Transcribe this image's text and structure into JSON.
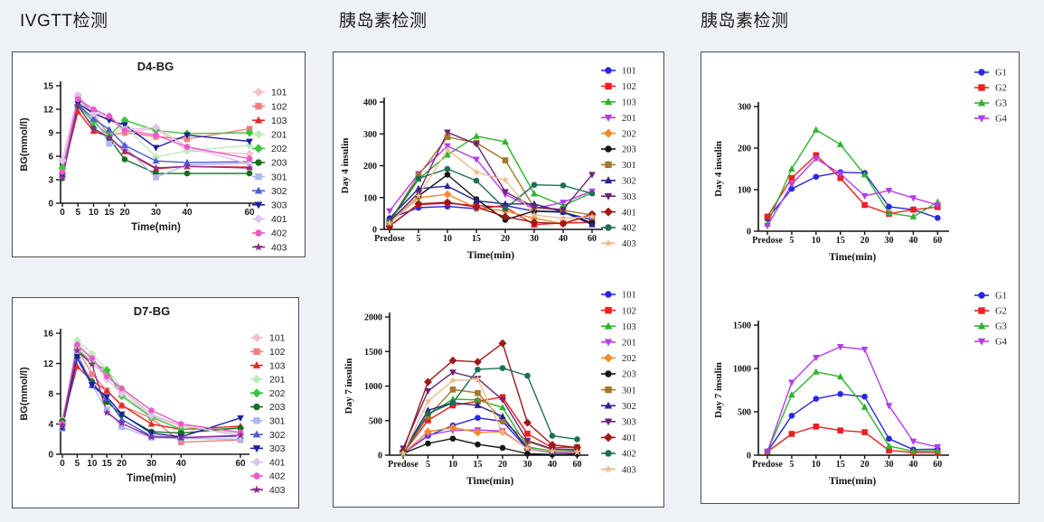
{
  "page": {
    "background": "#eef1f6",
    "panel_background": "#ffffff",
    "panel_border": "#4d4d4d"
  },
  "headers": {
    "left": "IVGTT检测",
    "middle": "胰岛素检测",
    "right": "胰岛素检测"
  },
  "chart_data": [
    {
      "id": "d4-bg",
      "type": "line",
      "title": "D4-BG",
      "xlabel": "Time(min)",
      "ylabel": "BG(mmol/l)",
      "font": "sans",
      "axis_color": "#1a1a1a",
      "x_mode": "linear",
      "xlim": [
        0,
        60
      ],
      "ylim": [
        0,
        15
      ],
      "x_values": [
        0,
        5,
        10,
        15,
        20,
        30,
        40,
        60
      ],
      "x_tick_labels": [
        "0",
        "5",
        "10",
        "15",
        "20",
        "30",
        "40",
        "60"
      ],
      "y_ticks": [
        0,
        3,
        6,
        9,
        12,
        15
      ],
      "legend_position": "right",
      "grid": false,
      "series": [
        {
          "name": "101",
          "color": "#f3c1c8",
          "marker": "diamond",
          "values": [
            5.4,
            13.5,
            11.2,
            11.0,
            9.0,
            9.6,
            6.7,
            6.3
          ]
        },
        {
          "name": "102",
          "color": "#ef8181",
          "marker": "square",
          "values": [
            3.9,
            13.7,
            11.3,
            8.7,
            9.0,
            8.5,
            8.2,
            9.5
          ]
        },
        {
          "name": "103",
          "color": "#e12a24",
          "marker": "triangle",
          "values": [
            3.8,
            11.7,
            9.2,
            8.5,
            6.6,
            4.4,
            4.7,
            4.6
          ]
        },
        {
          "name": "201",
          "color": "#bfe9bf",
          "marker": "diamond",
          "values": [
            4.4,
            12.6,
            10.3,
            8.4,
            9.9,
            5.9,
            6.7,
            7.4
          ]
        },
        {
          "name": "202",
          "color": "#3dc53d",
          "marker": "diamond",
          "values": [
            4.5,
            12.5,
            10.4,
            8.6,
            10.6,
            9.3,
            8.9,
            9.0
          ]
        },
        {
          "name": "203",
          "color": "#176f1d",
          "marker": "circle",
          "values": [
            3.2,
            12.4,
            9.6,
            8.3,
            5.6,
            3.8,
            3.8,
            3.8
          ]
        },
        {
          "name": "301",
          "color": "#adb6ee",
          "marker": "square",
          "values": [
            3.5,
            13.5,
            11.0,
            7.6,
            7.2,
            3.3,
            4.9,
            5.1
          ]
        },
        {
          "name": "302",
          "color": "#4d5cd2",
          "marker": "triangle",
          "values": [
            3.6,
            12.6,
            10.8,
            9.4,
            7.4,
            5.4,
            5.2,
            5.3
          ]
        },
        {
          "name": "303",
          "color": "#1d1da0",
          "marker": "triangle-down",
          "values": [
            3.5,
            12.7,
            11.5,
            10.6,
            10.0,
            7.1,
            8.7,
            7.9
          ]
        },
        {
          "name": "401",
          "color": "#dfc3ef",
          "marker": "diamond",
          "values": [
            5.5,
            13.8,
            11.5,
            11.2,
            9.4,
            9.7,
            7.2,
            5.0
          ]
        },
        {
          "name": "402",
          "color": "#ee59c8",
          "marker": "circle",
          "values": [
            4.0,
            13.3,
            12.0,
            11.1,
            9.3,
            8.7,
            7.2,
            5.7
          ]
        },
        {
          "name": "403",
          "color": "#8e2a8e",
          "marker": "star",
          "values": [
            3.3,
            12.5,
            9.5,
            8.4,
            6.7,
            4.5,
            4.7,
            4.5
          ]
        }
      ]
    },
    {
      "id": "d7-bg",
      "type": "line",
      "title": "D7-BG",
      "xlabel": "Time(min)",
      "ylabel": "BG(mmol/l)",
      "font": "sans",
      "axis_color": "#1a1a1a",
      "x_mode": "linear",
      "xlim": [
        0,
        60
      ],
      "ylim": [
        0,
        16
      ],
      "x_values": [
        0,
        5,
        10,
        15,
        20,
        30,
        40,
        60
      ],
      "x_tick_labels": [
        "0",
        "5",
        "10",
        "15",
        "20",
        "30",
        "40",
        "60"
      ],
      "y_ticks": [
        0,
        4,
        8,
        12,
        16
      ],
      "legend_position": "right",
      "grid": false,
      "series": [
        {
          "name": "101",
          "color": "#f3c1c8",
          "marker": "diamond",
          "values": [
            4.6,
            14.2,
            12.0,
            10.2,
            8.6,
            5.0,
            3.7,
            2.7
          ]
        },
        {
          "name": "102",
          "color": "#ef8181",
          "marker": "square",
          "values": [
            3.9,
            14.0,
            10.6,
            8.4,
            6.4,
            4.8,
            1.6,
            1.9
          ]
        },
        {
          "name": "103",
          "color": "#e12a24",
          "marker": "triangle",
          "values": [
            4.3,
            11.6,
            9.7,
            8.4,
            6.5,
            4.0,
            3.3,
            3.7
          ]
        },
        {
          "name": "201",
          "color": "#bfe9bf",
          "marker": "diamond",
          "values": [
            4.2,
            15.1,
            13.3,
            11.2,
            8.7,
            5.3,
            3.8,
            2.8
          ]
        },
        {
          "name": "202",
          "color": "#3dc53d",
          "marker": "diamond",
          "values": [
            4.4,
            13.8,
            12.2,
            11.1,
            7.7,
            4.9,
            3.3,
            3.4
          ]
        },
        {
          "name": "203",
          "color": "#176f1d",
          "marker": "circle",
          "values": [
            4.4,
            12.8,
            9.6,
            6.9,
            5.2,
            3.0,
            2.8,
            3.5
          ]
        },
        {
          "name": "301",
          "color": "#adb6ee",
          "marker": "square",
          "values": [
            3.4,
            13.6,
            9.1,
            5.9,
            3.6,
            2.2,
            2.1,
            2.0
          ]
        },
        {
          "name": "302",
          "color": "#4d5cd2",
          "marker": "triangle",
          "values": [
            3.5,
            12.6,
            9.1,
            7.4,
            4.6,
            2.4,
            2.2,
            2.4
          ]
        },
        {
          "name": "303",
          "color": "#1d1da0",
          "marker": "triangle-down",
          "values": [
            3.6,
            12.9,
            9.2,
            7.6,
            5.3,
            2.8,
            2.3,
            4.8
          ]
        },
        {
          "name": "401",
          "color": "#dfc3ef",
          "marker": "diamond",
          "values": [
            4.0,
            14.4,
            12.5,
            9.9,
            8.0,
            5.1,
            3.9,
            2.4
          ]
        },
        {
          "name": "402",
          "color": "#ee59c8",
          "marker": "circle",
          "values": [
            4.1,
            14.5,
            12.7,
            10.3,
            8.7,
            5.8,
            4.0,
            2.9
          ]
        },
        {
          "name": "403",
          "color": "#8e2a8e",
          "marker": "star",
          "values": [
            3.8,
            13.7,
            11.9,
            5.5,
            4.1,
            2.3,
            2.2,
            2.5
          ]
        }
      ]
    },
    {
      "id": "day4-ins",
      "type": "line",
      "title": "",
      "xlabel": "Time(min)",
      "ylabel": "Day 4 insulin",
      "font": "serif",
      "axis_color": "#111111",
      "x_mode": "categorical",
      "ylim": [
        0,
        400
      ],
      "x_tick_labels": [
        "Predose",
        "5",
        "10",
        "15",
        "20",
        "30",
        "40",
        "60"
      ],
      "y_ticks": [
        0,
        100,
        200,
        300,
        400
      ],
      "legend_position": "right",
      "grid": false,
      "series": [
        {
          "name": "101",
          "color": "#2828e0",
          "marker": "circle",
          "values": [
            35,
            68,
            72,
            65,
            75,
            57,
            54,
            30
          ]
        },
        {
          "name": "102",
          "color": "#ee1f1f",
          "marker": "square",
          "values": [
            12,
            78,
            82,
            75,
            70,
            15,
            20,
            22
          ]
        },
        {
          "name": "103",
          "color": "#2db32d",
          "marker": "triangle",
          "values": [
            22,
            158,
            234,
            293,
            275,
            112,
            75,
            115
          ]
        },
        {
          "name": "201",
          "color": "#b43cee",
          "marker": "triangle-down",
          "values": [
            58,
            175,
            262,
            220,
            110,
            65,
            85,
            120
          ]
        },
        {
          "name": "202",
          "color": "#f08b2d",
          "marker": "diamond",
          "values": [
            20,
            100,
            110,
            68,
            58,
            35,
            18,
            45
          ]
        },
        {
          "name": "203",
          "color": "#161616",
          "marker": "circle",
          "values": [
            22,
            105,
            172,
            95,
            30,
            58,
            55,
            20
          ]
        },
        {
          "name": "301",
          "color": "#a6762c",
          "marker": "square",
          "values": [
            25,
            170,
            290,
            272,
            217,
            68,
            60,
            45
          ]
        },
        {
          "name": "302",
          "color": "#26268e",
          "marker": "triangle",
          "values": [
            35,
            128,
            136,
            90,
            80,
            80,
            55,
            15
          ]
        },
        {
          "name": "303",
          "color": "#6e2376",
          "marker": "triangle-down",
          "values": [
            25,
            115,
            305,
            268,
            118,
            70,
            62,
            172
          ]
        },
        {
          "name": "401",
          "color": "#9e1818",
          "marker": "diamond",
          "values": [
            10,
            80,
            85,
            70,
            40,
            22,
            18,
            48
          ]
        },
        {
          "name": "402",
          "color": "#1e6e57",
          "marker": "circle",
          "values": [
            25,
            160,
            190,
            153,
            65,
            140,
            138,
            113
          ]
        },
        {
          "name": "403",
          "color": "#edbd8e",
          "marker": "star",
          "values": [
            20,
            105,
            250,
            180,
            155,
            45,
            35,
            40
          ]
        }
      ]
    },
    {
      "id": "day7-ins",
      "type": "line",
      "title": "",
      "xlabel": "Time(min)",
      "ylabel": "Day 7 insulin",
      "font": "serif",
      "axis_color": "#111111",
      "x_mode": "categorical",
      "ylim": [
        0,
        2000
      ],
      "x_tick_labels": [
        "Predose",
        "5",
        "10",
        "15",
        "20",
        "30",
        "40",
        "60"
      ],
      "y_ticks": [
        0,
        500,
        1000,
        1500,
        2000
      ],
      "legend_position": "right",
      "grid": false,
      "series": [
        {
          "name": "101",
          "color": "#2828e0",
          "marker": "circle",
          "values": [
            25,
            280,
            430,
            540,
            490,
            90,
            40,
            30
          ]
        },
        {
          "name": "102",
          "color": "#ee1f1f",
          "marker": "square",
          "values": [
            30,
            505,
            720,
            780,
            840,
            310,
            110,
            115
          ]
        },
        {
          "name": "103",
          "color": "#2db32d",
          "marker": "triangle",
          "values": [
            35,
            580,
            810,
            800,
            690,
            120,
            60,
            65
          ]
        },
        {
          "name": "201",
          "color": "#b43cee",
          "marker": "triangle-down",
          "values": [
            30,
            290,
            360,
            365,
            350,
            95,
            45,
            40
          ]
        },
        {
          "name": "202",
          "color": "#f08b2d",
          "marker": "diamond",
          "values": [
            25,
            340,
            400,
            330,
            340,
            95,
            50,
            45
          ]
        },
        {
          "name": "203",
          "color": "#161616",
          "marker": "circle",
          "values": [
            25,
            170,
            240,
            155,
            105,
            20,
            10,
            15
          ]
        },
        {
          "name": "301",
          "color": "#a6762c",
          "marker": "square",
          "values": [
            40,
            560,
            950,
            900,
            500,
            200,
            80,
            90
          ]
        },
        {
          "name": "302",
          "color": "#26268e",
          "marker": "triangle",
          "values": [
            40,
            650,
            760,
            720,
            560,
            100,
            50,
            55
          ]
        },
        {
          "name": "303",
          "color": "#6e2376",
          "marker": "triangle-down",
          "values": [
            100,
            930,
            1200,
            1110,
            800,
            210,
            90,
            80
          ]
        },
        {
          "name": "401",
          "color": "#9e1818",
          "marker": "diamond",
          "values": [
            60,
            1060,
            1370,
            1350,
            1620,
            470,
            150,
            110
          ]
        },
        {
          "name": "402",
          "color": "#1e6e57",
          "marker": "circle",
          "values": [
            30,
            600,
            760,
            1240,
            1260,
            1150,
            280,
            230
          ]
        },
        {
          "name": "403",
          "color": "#edbd8e",
          "marker": "star",
          "values": [
            25,
            780,
            1080,
            1100,
            330,
            95,
            55,
            45
          ]
        }
      ]
    },
    {
      "id": "g-day4",
      "type": "line",
      "title": "",
      "xlabel": "Time(min)",
      "ylabel": "Day 4 insulin",
      "font": "serif",
      "axis_color": "#111111",
      "x_mode": "categorical",
      "ylim": [
        0,
        300
      ],
      "x_tick_labels": [
        "Predose",
        "5",
        "10",
        "15",
        "20",
        "30",
        "40",
        "60"
      ],
      "y_ticks": [
        0,
        100,
        200,
        300
      ],
      "legend_position": "right",
      "grid": false,
      "series": [
        {
          "name": "G1",
          "color": "#2828e0",
          "marker": "circle",
          "values": [
            30,
            102,
            131,
            142,
            140,
            59,
            52,
            32
          ]
        },
        {
          "name": "G2",
          "color": "#ee1f1f",
          "marker": "square",
          "values": [
            35,
            128,
            183,
            128,
            63,
            42,
            52,
            58
          ]
        },
        {
          "name": "G3",
          "color": "#2db32d",
          "marker": "triangle",
          "values": [
            18,
            150,
            244,
            209,
            136,
            44,
            35,
            70
          ]
        },
        {
          "name": "G4",
          "color": "#b43cee",
          "marker": "triangle-down",
          "values": [
            13,
            113,
            175,
            138,
            85,
            98,
            80,
            63
          ]
        }
      ]
    },
    {
      "id": "g-day7",
      "type": "line",
      "title": "",
      "xlabel": "Time(min)",
      "ylabel": "Day 7 insulin",
      "font": "serif",
      "axis_color": "#111111",
      "x_mode": "categorical",
      "ylim": [
        0,
        1500
      ],
      "x_tick_labels": [
        "Predose",
        "5",
        "10",
        "15",
        "20",
        "30",
        "40",
        "60"
      ],
      "y_ticks": [
        0,
        500,
        1000,
        1500
      ],
      "legend_position": "right",
      "grid": false,
      "series": [
        {
          "name": "G1",
          "color": "#2828e0",
          "marker": "circle",
          "values": [
            40,
            455,
            650,
            705,
            675,
            190,
            65,
            70
          ]
        },
        {
          "name": "G2",
          "color": "#ee1f1f",
          "marker": "square",
          "values": [
            40,
            245,
            330,
            285,
            265,
            55,
            30,
            30
          ]
        },
        {
          "name": "G3",
          "color": "#2db32d",
          "marker": "triangle",
          "values": [
            45,
            695,
            960,
            905,
            555,
            105,
            45,
            50
          ]
        },
        {
          "name": "G4",
          "color": "#b43cee",
          "marker": "triangle-down",
          "values": [
            40,
            840,
            1125,
            1250,
            1220,
            570,
            160,
            95
          ]
        }
      ]
    }
  ]
}
